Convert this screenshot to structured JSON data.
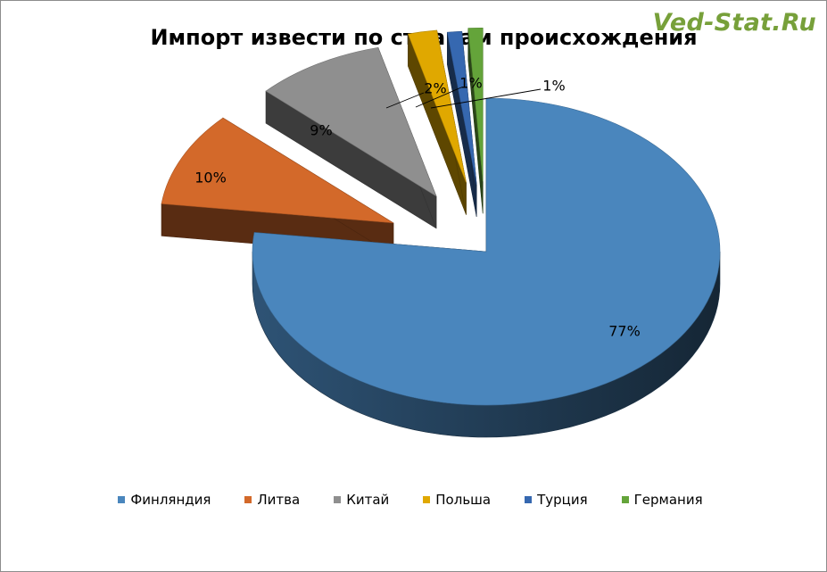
{
  "watermark": "Ved-Stat.Ru",
  "chart_data": {
    "type": "pie",
    "title": "Импорт извести по странам происхождения",
    "style": "3d-exploded",
    "legend_position": "bottom",
    "categories": [
      "Финляндия",
      "Литва",
      "Китай",
      "Польша",
      "Турция",
      "Германия"
    ],
    "values": [
      77,
      10,
      9,
      2,
      1,
      1
    ],
    "labels": [
      "77%",
      "10%",
      "9%",
      "2%",
      "1%",
      "1%"
    ],
    "colors": [
      "#4a86bd",
      "#d3692a",
      "#8f8f8f",
      "#e0a800",
      "#3668b0",
      "#64a43a"
    ]
  }
}
